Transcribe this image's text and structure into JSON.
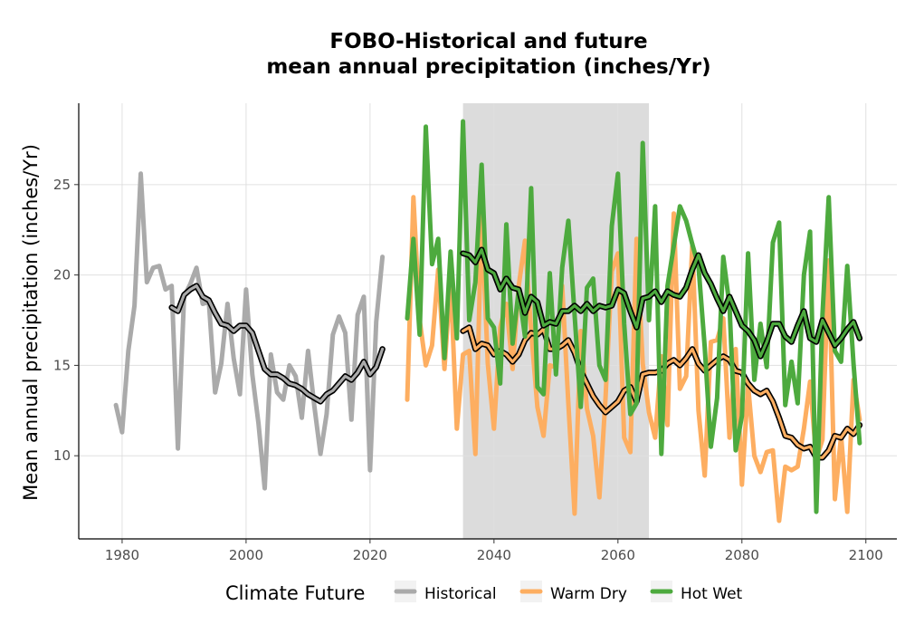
{
  "chart_data": {
    "type": "line",
    "title_line1": "FOBO-Historical and future",
    "title_line2": "mean annual precipitation (inches/Yr)",
    "xlabel": "",
    "ylabel": "Mean annual precipitation (inches/Yr)",
    "xlim": [
      1973,
      2105
    ],
    "ylim": [
      5.4,
      29.5
    ],
    "x_ticks": [
      1980,
      2000,
      2020,
      2040,
      2060,
      2080,
      2100
    ],
    "y_ticks": [
      10,
      15,
      20,
      25
    ],
    "shaded_period": [
      2035,
      2065
    ],
    "shade_color": "#dcdcdc",
    "grid": true,
    "legend": {
      "title": "Climate Future",
      "position": "bottom",
      "entries": [
        {
          "label": "Historical",
          "color": "#aaaaaa"
        },
        {
          "label": "Warm Dry",
          "color": "#fdae61"
        },
        {
          "label": "Hot Wet",
          "color": "#4daa3e"
        }
      ]
    },
    "series": [
      {
        "name": "Historical",
        "color": "#aaaaaa",
        "x": [
          1979,
          1980,
          1981,
          1982,
          1983,
          1984,
          1985,
          1986,
          1987,
          1988,
          1989,
          1990,
          1991,
          1992,
          1993,
          1994,
          1995,
          1996,
          1997,
          1998,
          1999,
          2000,
          2001,
          2002,
          2003,
          2004,
          2005,
          2006,
          2007,
          2008,
          2009,
          2010,
          2011,
          2012,
          2013,
          2014,
          2015,
          2016,
          2017,
          2018,
          2019,
          2020,
          2021,
          2022
        ],
        "y": [
          12.8,
          11.3,
          15.8,
          18.3,
          25.6,
          19.6,
          20.4,
          20.5,
          19.2,
          19.4,
          10.4,
          18.8,
          19.5,
          20.4,
          18.4,
          18.5,
          13.5,
          15.1,
          18.4,
          15.4,
          13.4,
          19.2,
          14.5,
          11.8,
          8.2,
          15.6,
          13.5,
          13.1,
          15.0,
          14.4,
          12.1,
          15.8,
          12.8,
          10.1,
          12.3,
          16.7,
          17.7,
          16.8,
          12.0,
          17.8,
          18.8,
          9.2,
          17.4,
          21.0
        ]
      },
      {
        "name": "Historical (smoothed)",
        "color": "#000000",
        "x": [
          1988,
          1989,
          1990,
          1991,
          1992,
          1993,
          1994,
          1995,
          1996,
          1997,
          1998,
          1999,
          2000,
          2001,
          2002,
          2003,
          2004,
          2005,
          2006,
          2007,
          2008,
          2009,
          2010,
          2011,
          2012,
          2013,
          2014,
          2015,
          2016,
          2017,
          2018,
          2019,
          2020,
          2021,
          2022
        ],
        "y": [
          18.2,
          18.0,
          18.9,
          19.2,
          19.4,
          18.8,
          18.6,
          17.9,
          17.3,
          17.2,
          16.9,
          17.2,
          17.2,
          16.8,
          15.8,
          14.8,
          14.5,
          14.5,
          14.3,
          14.0,
          13.9,
          13.7,
          13.4,
          13.2,
          13.0,
          13.4,
          13.6,
          14.0,
          14.4,
          14.2,
          14.6,
          15.2,
          14.5,
          14.9,
          15.9
        ]
      },
      {
        "name": "Warm Dry",
        "color": "#fdae61",
        "x": [
          2026,
          2027,
          2028,
          2029,
          2030,
          2031,
          2032,
          2033,
          2034,
          2035,
          2036,
          2037,
          2038,
          2039,
          2040,
          2041,
          2042,
          2043,
          2044,
          2045,
          2046,
          2047,
          2048,
          2049,
          2050,
          2051,
          2052,
          2053,
          2054,
          2055,
          2056,
          2057,
          2058,
          2059,
          2060,
          2061,
          2062,
          2063,
          2064,
          2065,
          2066,
          2067,
          2068,
          2069,
          2070,
          2071,
          2072,
          2073,
          2074,
          2075,
          2076,
          2077,
          2078,
          2079,
          2080,
          2081,
          2082,
          2083,
          2084,
          2085,
          2086,
          2087,
          2088,
          2089,
          2090,
          2091,
          2092,
          2093,
          2094,
          2095,
          2096,
          2097,
          2098,
          2099
        ],
        "y": [
          13.1,
          24.3,
          17.5,
          15.0,
          16.1,
          20.3,
          14.8,
          19.7,
          11.5,
          15.6,
          15.8,
          10.1,
          23.3,
          15.1,
          11.5,
          17.1,
          18.4,
          14.8,
          19.4,
          21.9,
          16.9,
          12.7,
          11.1,
          15.0,
          14.9,
          19.4,
          12.9,
          6.8,
          16.9,
          12.6,
          11.1,
          7.7,
          13.2,
          20.2,
          21.2,
          11.0,
          10.2,
          22.0,
          15.1,
          12.4,
          11.0,
          15.5,
          11.7,
          23.4,
          13.7,
          14.4,
          21.7,
          12.5,
          8.9,
          16.3,
          16.4,
          17.6,
          11.0,
          15.9,
          8.4,
          13.9,
          10.0,
          9.1,
          10.2,
          10.3,
          6.4,
          9.4,
          9.2,
          9.4,
          11.5,
          14.1,
          9.8,
          10.9,
          20.8,
          7.6,
          11.1,
          6.9,
          14.2,
          12.0
        ]
      },
      {
        "name": "Warm Dry (smoothed)",
        "color": "#000000",
        "x": [
          2035,
          2036,
          2037,
          2038,
          2039,
          2040,
          2041,
          2042,
          2043,
          2044,
          2045,
          2046,
          2047,
          2048,
          2049,
          2050,
          2051,
          2052,
          2053,
          2054,
          2055,
          2056,
          2057,
          2058,
          2059,
          2060,
          2061,
          2062,
          2063,
          2064,
          2065,
          2066,
          2067,
          2068,
          2069,
          2070,
          2071,
          2072,
          2073,
          2074,
          2075,
          2076,
          2077,
          2078,
          2079,
          2080,
          2081,
          2082,
          2083,
          2084,
          2085,
          2086,
          2087,
          2088,
          2089,
          2090,
          2091,
          2092,
          2093,
          2094,
          2095,
          2096,
          2097,
          2098,
          2099
        ],
        "y": [
          16.9,
          17.1,
          15.9,
          16.2,
          16.1,
          15.6,
          15.8,
          15.6,
          15.2,
          15.6,
          16.4,
          16.8,
          16.7,
          17.0,
          15.9,
          15.9,
          16.1,
          16.4,
          15.7,
          14.7,
          14.0,
          13.3,
          12.8,
          12.4,
          12.7,
          13.0,
          13.6,
          13.8,
          13.0,
          14.5,
          14.6,
          14.6,
          14.7,
          15.1,
          15.3,
          15.0,
          15.4,
          15.9,
          15.1,
          14.7,
          15.0,
          15.3,
          15.5,
          15.3,
          14.7,
          14.6,
          14.0,
          13.6,
          13.4,
          13.6,
          13.0,
          12.1,
          11.1,
          11.0,
          10.6,
          10.4,
          10.5,
          9.9,
          9.9,
          10.3,
          11.1,
          11.0,
          11.5,
          11.2,
          11.7
        ]
      },
      {
        "name": "Hot Wet",
        "color": "#4daa3e",
        "x": [
          2026,
          2027,
          2028,
          2029,
          2030,
          2031,
          2032,
          2033,
          2034,
          2035,
          2036,
          2037,
          2038,
          2039,
          2040,
          2041,
          2042,
          2043,
          2044,
          2045,
          2046,
          2047,
          2048,
          2049,
          2050,
          2051,
          2052,
          2053,
          2054,
          2055,
          2056,
          2057,
          2058,
          2059,
          2060,
          2061,
          2062,
          2063,
          2064,
          2065,
          2066,
          2067,
          2068,
          2069,
          2070,
          2071,
          2072,
          2073,
          2074,
          2075,
          2076,
          2077,
          2078,
          2079,
          2080,
          2081,
          2082,
          2083,
          2084,
          2085,
          2086,
          2087,
          2088,
          2089,
          2090,
          2091,
          2092,
          2093,
          2094,
          2095,
          2096,
          2097,
          2098,
          2099
        ],
        "y": [
          17.6,
          22.0,
          16.7,
          28.2,
          20.6,
          22.0,
          15.4,
          21.3,
          16.5,
          28.5,
          17.5,
          19.6,
          26.1,
          17.6,
          17.1,
          14.0,
          22.8,
          16.2,
          19.2,
          16.6,
          24.8,
          13.8,
          13.4,
          20.1,
          14.5,
          20.4,
          23.0,
          17.8,
          12.7,
          19.3,
          19.8,
          15.0,
          14.2,
          22.7,
          25.6,
          17.3,
          12.3,
          12.9,
          27.3,
          17.5,
          23.8,
          10.1,
          19.4,
          21.6,
          23.8,
          23.0,
          21.7,
          20.5,
          16.0,
          10.5,
          13.2,
          21.0,
          18.3,
          10.3,
          12.2,
          21.2,
          14.2,
          17.3,
          14.9,
          21.8,
          22.9,
          12.8,
          15.2,
          12.9,
          20.0,
          22.4,
          6.9,
          17.8,
          24.3,
          15.8,
          15.2,
          20.5,
          15.1,
          10.7
        ]
      },
      {
        "name": "Hot Wet (smoothed)",
        "color": "#000000",
        "x": [
          2035,
          2036,
          2037,
          2038,
          2039,
          2040,
          2041,
          2042,
          2043,
          2044,
          2045,
          2046,
          2047,
          2048,
          2049,
          2050,
          2051,
          2052,
          2053,
          2054,
          2055,
          2056,
          2057,
          2058,
          2059,
          2060,
          2061,
          2062,
          2063,
          2064,
          2065,
          2066,
          2067,
          2068,
          2069,
          2070,
          2071,
          2072,
          2073,
          2074,
          2075,
          2076,
          2077,
          2078,
          2079,
          2080,
          2081,
          2082,
          2083,
          2084,
          2085,
          2086,
          2087,
          2088,
          2089,
          2090,
          2091,
          2092,
          2093,
          2094,
          2095,
          2096,
          2097,
          2098,
          2099
        ],
        "y": [
          21.2,
          21.1,
          20.7,
          21.4,
          20.3,
          20.1,
          19.2,
          19.8,
          19.3,
          19.2,
          17.9,
          18.8,
          18.5,
          17.2,
          17.4,
          17.3,
          18.0,
          18.0,
          18.3,
          18.0,
          18.4,
          18.0,
          18.3,
          18.2,
          18.3,
          19.2,
          19.0,
          18.0,
          17.1,
          18.7,
          18.8,
          19.1,
          18.5,
          19.1,
          18.9,
          18.8,
          19.3,
          20.3,
          21.1,
          20.1,
          19.5,
          18.7,
          18.0,
          18.8,
          18.0,
          17.2,
          16.9,
          16.4,
          15.5,
          16.3,
          17.3,
          17.3,
          16.6,
          16.3,
          17.2,
          18.0,
          16.5,
          16.3,
          17.5,
          16.8,
          16.1,
          16.5,
          17.0,
          17.4,
          16.5
        ]
      }
    ]
  }
}
